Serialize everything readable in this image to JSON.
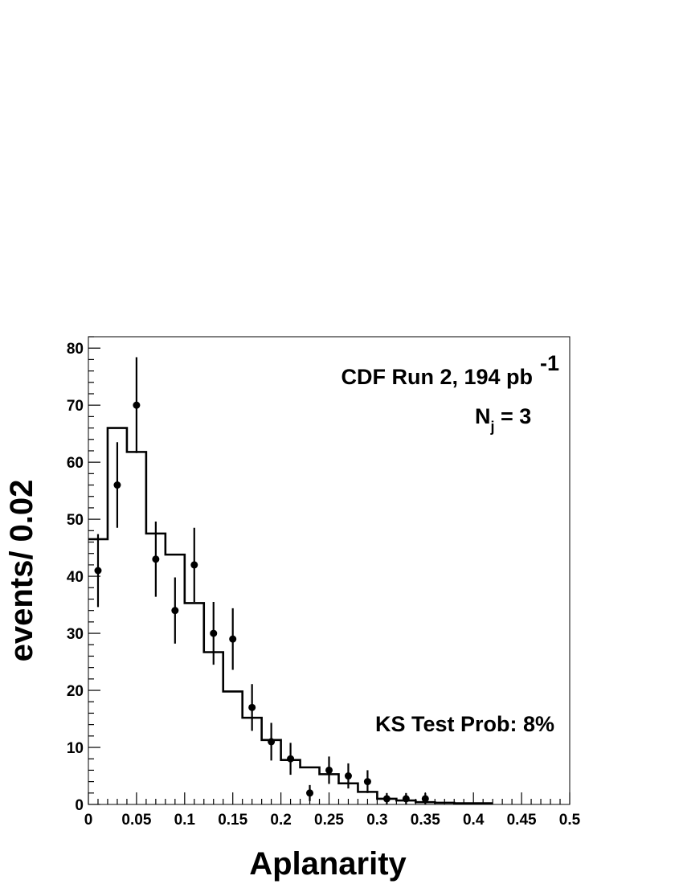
{
  "chart_data": {
    "type": "histogram",
    "xlabel": "Aplanarity",
    "ylabel": "events/ 0.02",
    "xlim": [
      0,
      0.5
    ],
    "ylim": [
      0,
      82
    ],
    "bin_width": 0.02,
    "x_ticks": [
      "0",
      "0.05",
      "0.1",
      "0.15",
      "0.2",
      "0.25",
      "0.3",
      "0.35",
      "0.4",
      "0.45",
      "0.5"
    ],
    "y_ticks": [
      "0",
      "10",
      "20",
      "30",
      "40",
      "50",
      "60",
      "70",
      "80"
    ],
    "annotations": {
      "experiment": "CDF Run 2, 194 pb",
      "experiment_sup": "-1",
      "njets_main": "N",
      "njets_sub": "j",
      "njets_rest": " = 3",
      "ks_test": "KS Test Prob: 8%"
    },
    "histogram": {
      "bin_edges": [
        0,
        0.02,
        0.04,
        0.06,
        0.08,
        0.1,
        0.12,
        0.14,
        0.16,
        0.18,
        0.2,
        0.22,
        0.24,
        0.26,
        0.28,
        0.3,
        0.32,
        0.34,
        0.36,
        0.38,
        0.4,
        0.42
      ],
      "values": [
        46.5,
        66,
        61.8,
        47.5,
        43.8,
        35.3,
        26.7,
        19.8,
        15.2,
        11.3,
        7.8,
        6.5,
        5.3,
        3.7,
        2.2,
        1.0,
        0.7,
        0.4,
        0.3,
        0.2,
        0.2
      ]
    },
    "data_points": {
      "x": [
        0.01,
        0.03,
        0.05,
        0.07,
        0.09,
        0.11,
        0.13,
        0.15,
        0.17,
        0.19,
        0.21,
        0.23,
        0.25,
        0.27,
        0.29,
        0.31,
        0.33,
        0.35
      ],
      "y": [
        41,
        56,
        70,
        43,
        34,
        42,
        30,
        29,
        17,
        11,
        8,
        2,
        6,
        5,
        4,
        1,
        1,
        1
      ],
      "err_low": [
        6.4,
        7.5,
        8.4,
        6.6,
        5.8,
        6.5,
        5.5,
        5.4,
        4.1,
        3.3,
        2.8,
        1.4,
        2.4,
        2.2,
        2.0,
        1.0,
        1.0,
        1.0
      ],
      "err_high": [
        6.4,
        7.5,
        8.4,
        6.6,
        5.8,
        6.5,
        5.5,
        5.4,
        4.1,
        3.3,
        2.8,
        1.4,
        2.4,
        2.2,
        2.0,
        1.0,
        1.0,
        1.0
      ]
    }
  }
}
